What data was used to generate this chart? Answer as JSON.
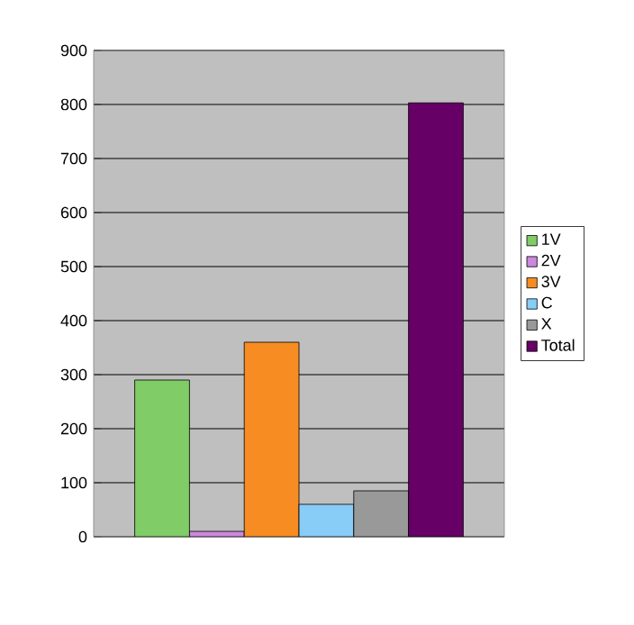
{
  "chart_data": {
    "type": "bar",
    "categories": [
      null
    ],
    "series": [
      {
        "name": "1V",
        "color": "#80cc66",
        "values": [
          290
        ]
      },
      {
        "name": "2V",
        "color": "#cc88dd",
        "values": [
          10
        ]
      },
      {
        "name": "3V",
        "color": "#f78c22",
        "values": [
          360
        ]
      },
      {
        "name": "C",
        "color": "#88ccf8",
        "values": [
          60
        ]
      },
      {
        "name": "X",
        "color": "#999999",
        "values": [
          85
        ]
      },
      {
        "name": "Total",
        "color": "#660066",
        "values": [
          803
        ]
      }
    ],
    "ylim": [
      0,
      900
    ],
    "yticks": [
      0,
      100,
      200,
      300,
      400,
      500,
      600,
      700,
      800,
      900
    ],
    "grid": "y",
    "legend": "right",
    "tick_labels": "y"
  }
}
